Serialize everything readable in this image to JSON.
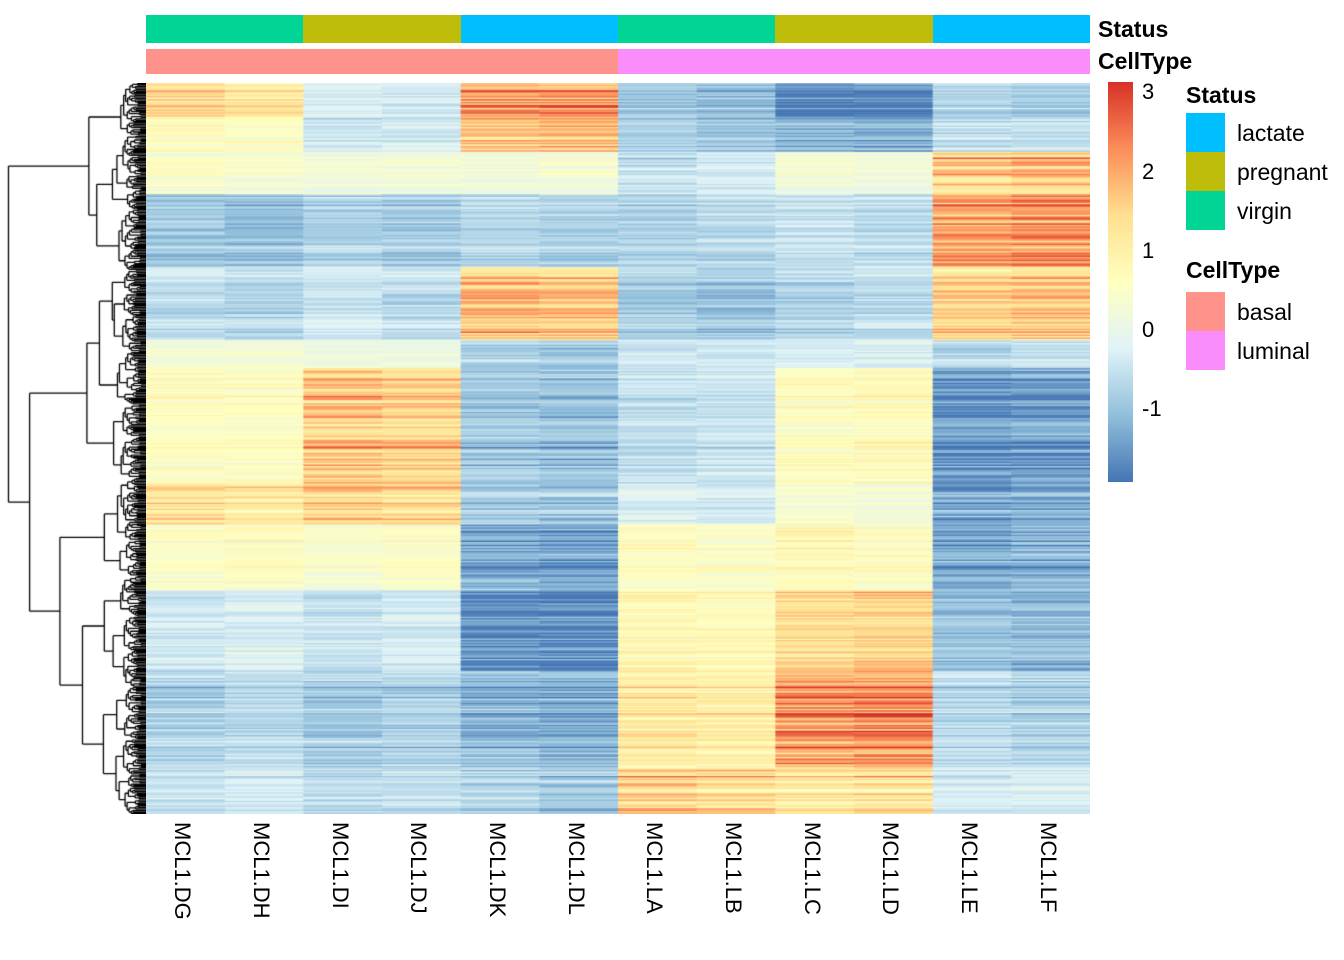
{
  "chart_data": {
    "type": "heatmap",
    "title": "",
    "columns": [
      "MCL1.DG",
      "MCL1.DH",
      "MCL1.DI",
      "MCL1.DJ",
      "MCL1.DK",
      "MCL1.DL",
      "MCL1.LA",
      "MCL1.LB",
      "MCL1.LC",
      "MCL1.LD",
      "MCL1.LE",
      "MCL1.LF"
    ],
    "annotation_labels": {
      "status": "Status",
      "celltype": "CellType"
    },
    "column_annotations": {
      "Status": [
        "virgin",
        "virgin",
        "pregnant",
        "pregnant",
        "lactate",
        "lactate",
        "virgin",
        "virgin",
        "pregnant",
        "pregnant",
        "lactate",
        "lactate"
      ],
      "CellType": [
        "basal",
        "basal",
        "basal",
        "basal",
        "basal",
        "basal",
        "luminal",
        "luminal",
        "luminal",
        "luminal",
        "luminal",
        "luminal"
      ]
    },
    "annotation_colors": {
      "Status": {
        "lactate": "#00BFFF",
        "pregnant": "#BEBE0A",
        "virgin": "#00D596"
      },
      "CellType": {
        "basal": "#FF928B",
        "luminal": "#FB8CFB"
      }
    },
    "legend": {
      "status": {
        "title": "Status",
        "entries": [
          {
            "label": "lactate",
            "color": "#00BFFF"
          },
          {
            "label": "pregnant",
            "color": "#BEBE0A"
          },
          {
            "label": "virgin",
            "color": "#00D596"
          }
        ]
      },
      "celltype": {
        "title": "CellType",
        "entries": [
          {
            "label": "basal",
            "color": "#FF928B"
          },
          {
            "label": "luminal",
            "color": "#FB8CFB"
          }
        ]
      }
    },
    "colorbar": {
      "ticks": [
        3,
        2,
        1,
        0,
        -1
      ],
      "domain_min": -1.92,
      "domain_max": 3.13,
      "stops": [
        "#4575B4",
        "#91BFDB",
        "#E0F3F8",
        "#FFFFBF",
        "#FEE090",
        "#FC8D59",
        "#D73027"
      ]
    },
    "rows": {
      "count": 500,
      "seed": 1234,
      "row_gain_spread": 0.9,
      "cell_noise": 0.5,
      "hot_row_prob": 0.05,
      "hot_row_boost": 0.6
    },
    "row_blocks": [
      {
        "frac": 0.047,
        "values": [
          1.2,
          1.0,
          -0.2,
          -0.3,
          1.7,
          1.8,
          -0.8,
          -0.9,
          -1.5,
          -1.4,
          -0.6,
          -0.7
        ]
      },
      {
        "frac": 0.045,
        "values": [
          0.6,
          0.5,
          -0.4,
          -0.3,
          1.5,
          1.6,
          -0.7,
          -0.8,
          -1.0,
          -1.1,
          -0.5,
          -0.4
        ]
      },
      {
        "frac": 0.057,
        "values": [
          0.4,
          0.3,
          0.2,
          0.2,
          0.2,
          0.3,
          -0.4,
          -0.3,
          0.3,
          0.2,
          1.4,
          1.5
        ]
      },
      {
        "frac": 0.1,
        "values": [
          -0.7,
          -0.8,
          -0.6,
          -0.7,
          -0.5,
          -0.6,
          -0.6,
          -0.5,
          -0.4,
          -0.5,
          1.6,
          1.7
        ]
      },
      {
        "frac": 0.1,
        "values": [
          -0.5,
          -0.6,
          -0.4,
          -0.5,
          1.5,
          1.4,
          -0.7,
          -0.8,
          -0.6,
          -0.5,
          1.3,
          1.4
        ]
      },
      {
        "frac": 0.037,
        "values": [
          0.2,
          0.2,
          0.1,
          0.1,
          -0.6,
          -0.7,
          -0.3,
          -0.3,
          -0.2,
          -0.2,
          -0.5,
          -0.4
        ]
      },
      {
        "frac": 0.157,
        "values": [
          0.5,
          0.5,
          1.5,
          1.3,
          -0.8,
          -0.9,
          -0.5,
          -0.4,
          0.5,
          0.6,
          -1.4,
          -1.3
        ]
      },
      {
        "frac": 0.055,
        "values": [
          1.1,
          1.0,
          1.3,
          1.2,
          -0.7,
          -0.8,
          -0.2,
          -0.3,
          0.3,
          0.2,
          -1.2,
          -1.1
        ]
      },
      {
        "frac": 0.089,
        "values": [
          0.4,
          0.5,
          0.3,
          0.4,
          -1.1,
          -1.2,
          0.5,
          0.4,
          0.6,
          0.5,
          -1.1,
          -1.0
        ]
      },
      {
        "frac": 0.109,
        "values": [
          -0.3,
          -0.2,
          -0.4,
          -0.3,
          -1.3,
          -1.4,
          0.7,
          0.6,
          1.1,
          1.2,
          -0.8,
          -0.9
        ]
      },
      {
        "frac": 0.133,
        "values": [
          -0.6,
          -0.5,
          -0.7,
          -0.6,
          -0.9,
          -1.0,
          0.9,
          0.8,
          1.7,
          1.8,
          -0.5,
          -0.6
        ]
      },
      {
        "frac": 0.071,
        "values": [
          -0.4,
          -0.3,
          -0.5,
          -0.4,
          -0.6,
          -0.7,
          1.3,
          1.2,
          1.0,
          1.1,
          -0.3,
          -0.2
        ]
      }
    ],
    "dendrogram": {
      "seed": 7,
      "color": "#000000"
    }
  }
}
